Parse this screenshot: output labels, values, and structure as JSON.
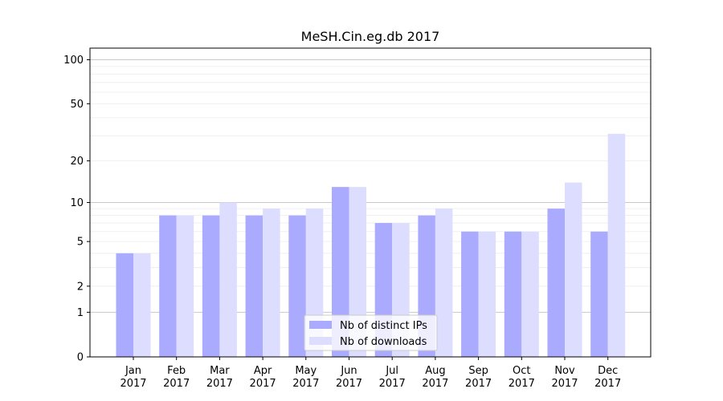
{
  "chart_data": {
    "type": "bar",
    "title": "MeSH.Cin.eg.db 2017",
    "xlabel": "",
    "ylabel": "",
    "y_scale": "log(1+y)",
    "ylim": [
      0,
      120
    ],
    "y_ticks": [
      0,
      1,
      2,
      5,
      10,
      20,
      50,
      100
    ],
    "grid": true,
    "legend_position": "bottom-center",
    "categories": [
      [
        "Jan",
        "2017"
      ],
      [
        "Feb",
        "2017"
      ],
      [
        "Mar",
        "2017"
      ],
      [
        "Apr",
        "2017"
      ],
      [
        "May",
        "2017"
      ],
      [
        "Jun",
        "2017"
      ],
      [
        "Jul",
        "2017"
      ],
      [
        "Aug",
        "2017"
      ],
      [
        "Sep",
        "2017"
      ],
      [
        "Oct",
        "2017"
      ],
      [
        "Nov",
        "2017"
      ],
      [
        "Dec",
        "2017"
      ]
    ],
    "series": [
      {
        "name": "Nb of distinct IPs",
        "color": "#aaaaff",
        "values": [
          4,
          8,
          8,
          8,
          8,
          13,
          7,
          8,
          6,
          6,
          9,
          6
        ]
      },
      {
        "name": "Nb of downloads",
        "color": "#ddddff",
        "values": [
          4,
          8,
          10,
          9,
          9,
          13,
          7,
          9,
          6,
          6,
          14,
          31
        ]
      }
    ]
  }
}
